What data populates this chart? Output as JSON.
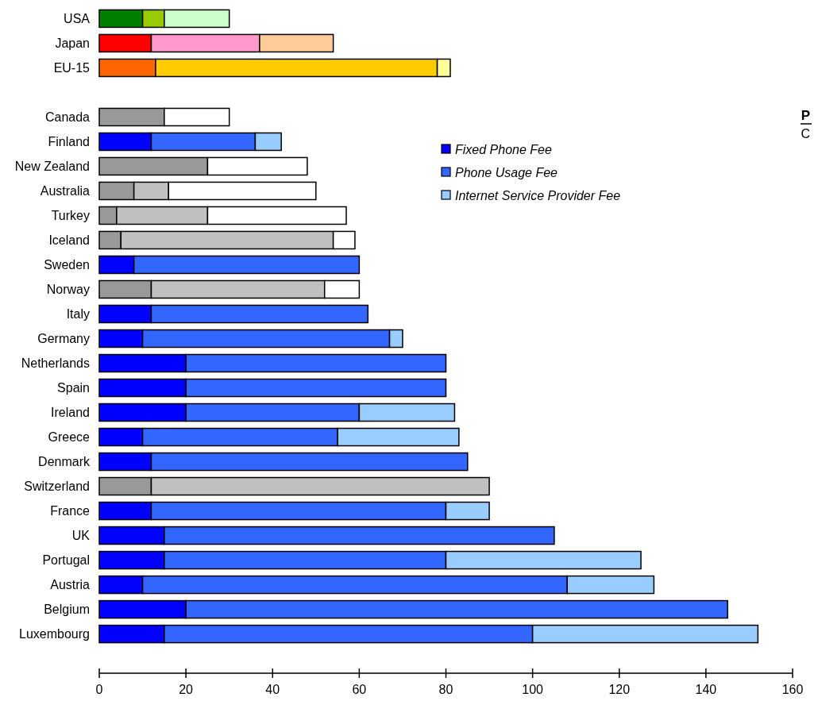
{
  "chart_data": {
    "type": "bar",
    "orientation": "horizontal",
    "stacked": true,
    "categories": [
      "USA",
      "Japan",
      "EU-15",
      null,
      "Canada",
      "Finland",
      "New Zealand",
      "Australia",
      "Turkey",
      "Iceland",
      "Sweden",
      "Norway",
      "Italy",
      "Germany",
      "Netherlands",
      "Spain",
      "Ireland",
      "Greece",
      "Denmark",
      "Switzerland",
      "France",
      "UK",
      "Portugal",
      "Austria",
      "Belgium",
      "Luxembourg"
    ],
    "series": [
      {
        "name": "Fixed Phone Fee",
        "color": "#0000ff",
        "values": [
          10,
          12,
          13,
          null,
          15,
          12,
          25,
          8,
          4,
          5,
          8,
          12,
          12,
          10,
          20,
          20,
          20,
          10,
          12,
          12,
          12,
          15,
          15,
          10,
          20,
          15
        ],
        "colors": [
          "#008000",
          "#ff0000",
          "#ff6600",
          null,
          "#999999",
          "#0000ff",
          "#999999",
          "#999999",
          "#999999",
          "#999999",
          "#0000ff",
          "#999999",
          "#0000ff",
          "#0000ff",
          "#0000ff",
          "#0000ff",
          "#0000ff",
          "#0000ff",
          "#0000ff",
          "#999999",
          "#0000ff",
          "#0000ff",
          "#0000ff",
          "#0000ff",
          "#0000ff",
          "#0000ff"
        ]
      },
      {
        "name": "Phone Usage Fee",
        "color": "#3366ff",
        "values": [
          5,
          25,
          65,
          null,
          15,
          24,
          23,
          8,
          21,
          49,
          52,
          40,
          50,
          57,
          60,
          60,
          40,
          45,
          73,
          78,
          68,
          90,
          65,
          98,
          125,
          85
        ],
        "colors": [
          "#99cc00",
          "#ff99cc",
          "#ffcc00",
          null,
          "#ffffff",
          "#3366ff",
          "#ffffff",
          "#c0c0c0",
          "#c0c0c0",
          "#c0c0c0",
          "#3366ff",
          "#c0c0c0",
          "#3366ff",
          "#3366ff",
          "#3366ff",
          "#3366ff",
          "#3366ff",
          "#3366ff",
          "#3366ff",
          "#c0c0c0",
          "#3366ff",
          "#3366ff",
          "#3366ff",
          "#3366ff",
          "#3366ff",
          "#3366ff"
        ]
      },
      {
        "name": "Internet Service Provider Fee",
        "color": "#99ccff",
        "values": [
          15,
          17,
          3,
          null,
          null,
          6,
          null,
          34,
          32,
          5,
          null,
          8,
          null,
          3,
          null,
          null,
          22,
          28,
          null,
          null,
          10,
          null,
          45,
          20,
          null,
          52
        ],
        "colors": [
          "#ccffcc",
          "#ffcc99",
          "#ffff99",
          null,
          null,
          "#99ccff",
          null,
          "#ffffff",
          "#ffffff",
          "#ffffff",
          null,
          "#ffffff",
          null,
          "#99ccff",
          null,
          null,
          "#99ccff",
          "#99ccff",
          null,
          null,
          "#99ccff",
          null,
          "#99ccff",
          "#99ccff",
          null,
          "#99ccff"
        ]
      }
    ],
    "xlim": [
      0,
      160
    ],
    "xticks": [
      0,
      20,
      40,
      60,
      80,
      100,
      120,
      140,
      160
    ],
    "legend": "top right",
    "grid": false,
    "annotations": [
      "P",
      "C"
    ]
  }
}
